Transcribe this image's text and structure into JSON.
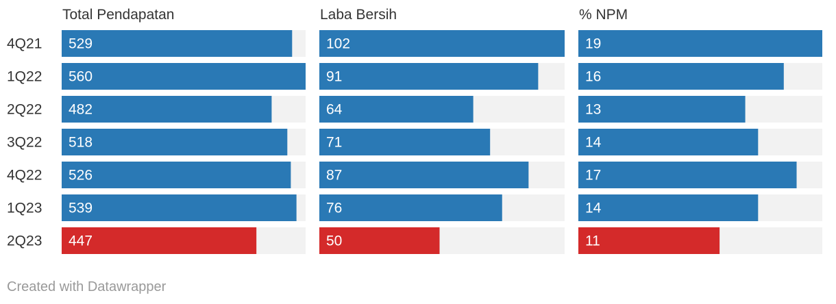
{
  "chart_data": {
    "type": "bar",
    "orientation": "horizontal",
    "categories": [
      "4Q21",
      "1Q22",
      "2Q22",
      "3Q22",
      "4Q22",
      "1Q23",
      "2Q23"
    ],
    "panels": [
      {
        "title": "Total Pendapatan",
        "values": [
          529,
          560,
          482,
          518,
          526,
          539,
          447
        ],
        "max": 560
      },
      {
        "title": "Laba Bersih",
        "values": [
          102,
          91,
          64,
          71,
          87,
          76,
          50
        ],
        "max": 102
      },
      {
        "title": "% NPM",
        "values": [
          19,
          16,
          13,
          14,
          17,
          14,
          11
        ],
        "max": 19
      }
    ],
    "highlight_category": "2Q23",
    "colors": {
      "bar": "#2a79b5",
      "highlight": "#d42a2a",
      "track": "#f2f2f2",
      "value_text": "#ffffff",
      "label_text": "#333333"
    },
    "grid": false,
    "legend": "none"
  },
  "footer": {
    "credit": "Created with Datawrapper"
  }
}
